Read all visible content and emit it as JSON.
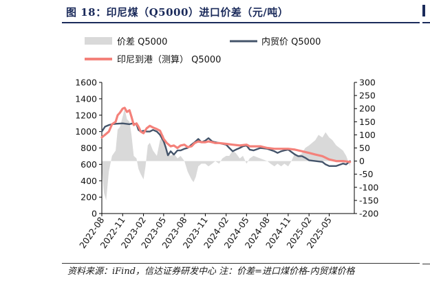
{
  "title": "图 18：印尼煤（Q5000）进口价差（元/吨）",
  "source": "资料来源：iFind，信达证券研发中心  注：价差=进口煤价格-内贸煤价格",
  "colors": {
    "title": "#1a2a5a",
    "spread": "#d9d9d9",
    "domestic": "#44546a",
    "imported": "#f4817a"
  },
  "chart_data": {
    "type": "line",
    "legend": [
      "价差 Q5000",
      "内贸价 Q5000",
      "印尼到港（测算） Q5000"
    ],
    "x_tick_labels": [
      "2022-08",
      "2022-11",
      "2023-02",
      "2023-05",
      "2023-08",
      "2023-11",
      "2024-02",
      "2024-05",
      "2024-08",
      "2024-11",
      "2025-02",
      "2025-05"
    ],
    "y_left": {
      "ticks": [
        "0",
        "200",
        "400",
        "600",
        "800",
        "1000",
        "1200",
        "1400",
        "1600"
      ],
      "range": [
        0,
        1600
      ]
    },
    "y_right": {
      "ticks": [
        "-200",
        "-150",
        "-100",
        "-50",
        "0",
        "50",
        "100",
        "150",
        "200",
        "250",
        "300"
      ],
      "range": [
        -200,
        300
      ]
    },
    "x_range": [
      "2022-08-01",
      "2025-08-20"
    ],
    "series": [
      {
        "name": "内贸价 Q5000",
        "axis": "left",
        "kind": "line",
        "points": [
          [
            "2022-08-01",
            1000
          ],
          [
            "2022-08-15",
            1060
          ],
          [
            "2022-09-01",
            1080
          ],
          [
            "2022-09-15",
            1090
          ],
          [
            "2022-10-01",
            1095
          ],
          [
            "2022-11-01",
            1100
          ],
          [
            "2022-12-01",
            1090
          ],
          [
            "2022-12-15",
            1100
          ],
          [
            "2023-01-01",
            1090
          ],
          [
            "2023-01-10",
            1020
          ],
          [
            "2023-01-20",
            1000
          ],
          [
            "2023-02-01",
            1010
          ],
          [
            "2023-02-15",
            1000
          ],
          [
            "2023-03-01",
            1000
          ],
          [
            "2023-03-15",
            1020
          ],
          [
            "2023-04-01",
            1000
          ],
          [
            "2023-04-15",
            960
          ],
          [
            "2023-05-01",
            880
          ],
          [
            "2023-05-10",
            810
          ],
          [
            "2023-05-20",
            710
          ],
          [
            "2023-06-01",
            760
          ],
          [
            "2023-06-15",
            720
          ],
          [
            "2023-07-01",
            770
          ],
          [
            "2023-07-15",
            770
          ],
          [
            "2023-08-01",
            790
          ],
          [
            "2023-08-15",
            800
          ],
          [
            "2023-09-01",
            840
          ],
          [
            "2023-09-15",
            870
          ],
          [
            "2023-10-01",
            910
          ],
          [
            "2023-10-15",
            870
          ],
          [
            "2023-11-01",
            890
          ],
          [
            "2023-11-15",
            920
          ],
          [
            "2023-12-01",
            880
          ],
          [
            "2023-12-15",
            870
          ],
          [
            "2024-01-01",
            860
          ],
          [
            "2024-01-15",
            850
          ],
          [
            "2024-02-01",
            840
          ],
          [
            "2024-02-15",
            800
          ],
          [
            "2024-03-01",
            760
          ],
          [
            "2024-03-15",
            780
          ],
          [
            "2024-04-01",
            800
          ],
          [
            "2024-04-15",
            820
          ],
          [
            "2024-05-01",
            830
          ],
          [
            "2024-05-15",
            780
          ],
          [
            "2024-06-01",
            770
          ],
          [
            "2024-07-01",
            800
          ],
          [
            "2024-08-01",
            790
          ],
          [
            "2024-09-01",
            760
          ],
          [
            "2024-09-15",
            740
          ],
          [
            "2024-10-01",
            760
          ],
          [
            "2024-10-15",
            770
          ],
          [
            "2024-11-01",
            780
          ],
          [
            "2024-12-01",
            720
          ],
          [
            "2024-12-15",
            700
          ],
          [
            "2025-01-01",
            700
          ],
          [
            "2025-01-15",
            680
          ],
          [
            "2025-02-01",
            650
          ],
          [
            "2025-03-01",
            640
          ],
          [
            "2025-04-01",
            630
          ],
          [
            "2025-04-15",
            600
          ],
          [
            "2025-05-01",
            580
          ],
          [
            "2025-05-15",
            580
          ],
          [
            "2025-06-01",
            580
          ],
          [
            "2025-07-01",
            610
          ],
          [
            "2025-07-15",
            600
          ],
          [
            "2025-08-01",
            640
          ]
        ]
      },
      {
        "name": "印尼到港（测算） Q5000",
        "axis": "left",
        "kind": "line",
        "points": [
          [
            "2022-08-01",
            930
          ],
          [
            "2022-08-15",
            960
          ],
          [
            "2022-09-01",
            1000
          ],
          [
            "2022-09-15",
            1090
          ],
          [
            "2022-10-01",
            1120
          ],
          [
            "2022-10-10",
            1200
          ],
          [
            "2022-10-20",
            1230
          ],
          [
            "2022-11-01",
            1280
          ],
          [
            "2022-11-10",
            1290
          ],
          [
            "2022-11-20",
            1240
          ],
          [
            "2022-12-01",
            1260
          ],
          [
            "2022-12-10",
            1180
          ],
          [
            "2022-12-20",
            1080
          ],
          [
            "2023-01-01",
            1100
          ],
          [
            "2023-01-10",
            1060
          ],
          [
            "2023-01-20",
            1000
          ],
          [
            "2023-02-01",
            980
          ],
          [
            "2023-02-15",
            1040
          ],
          [
            "2023-03-01",
            1070
          ],
          [
            "2023-03-15",
            1050
          ],
          [
            "2023-04-01",
            1030
          ],
          [
            "2023-04-15",
            1010
          ],
          [
            "2023-05-01",
            910
          ],
          [
            "2023-05-15",
            860
          ],
          [
            "2023-06-01",
            820
          ],
          [
            "2023-06-15",
            830
          ],
          [
            "2023-07-01",
            800
          ],
          [
            "2023-07-15",
            830
          ],
          [
            "2023-08-01",
            840
          ],
          [
            "2023-08-15",
            810
          ],
          [
            "2023-09-01",
            820
          ],
          [
            "2023-09-15",
            860
          ],
          [
            "2023-10-01",
            880
          ],
          [
            "2023-10-15",
            870
          ],
          [
            "2023-11-01",
            870
          ],
          [
            "2023-11-15",
            880
          ],
          [
            "2023-12-01",
            870
          ],
          [
            "2023-12-15",
            860
          ],
          [
            "2024-01-01",
            860
          ],
          [
            "2024-02-01",
            850
          ],
          [
            "2024-03-01",
            840
          ],
          [
            "2024-04-01",
            830
          ],
          [
            "2024-05-01",
            840
          ],
          [
            "2024-05-15",
            820
          ],
          [
            "2024-06-01",
            820
          ],
          [
            "2024-07-01",
            820
          ],
          [
            "2024-08-01",
            800
          ],
          [
            "2024-09-01",
            790
          ],
          [
            "2024-10-01",
            790
          ],
          [
            "2024-11-01",
            790
          ],
          [
            "2024-12-01",
            780
          ],
          [
            "2025-01-01",
            760
          ],
          [
            "2025-02-01",
            740
          ],
          [
            "2025-03-01",
            720
          ],
          [
            "2025-04-01",
            700
          ],
          [
            "2025-05-01",
            660
          ],
          [
            "2025-06-01",
            640
          ],
          [
            "2025-07-01",
            640
          ],
          [
            "2025-08-01",
            630
          ]
        ]
      },
      {
        "name": "价差 Q5000",
        "axis": "right",
        "kind": "area",
        "points": [
          [
            "2022-08-01",
            -30
          ],
          [
            "2022-08-10",
            -120
          ],
          [
            "2022-08-20",
            -150
          ],
          [
            "2022-09-01",
            -40
          ],
          [
            "2022-09-15",
            20
          ],
          [
            "2022-10-01",
            40
          ],
          [
            "2022-10-10",
            120
          ],
          [
            "2022-10-20",
            130
          ],
          [
            "2022-11-01",
            170
          ],
          [
            "2022-11-10",
            200
          ],
          [
            "2022-11-20",
            160
          ],
          [
            "2022-12-01",
            150
          ],
          [
            "2022-12-10",
            100
          ],
          [
            "2022-12-20",
            20
          ],
          [
            "2023-01-01",
            10
          ],
          [
            "2023-01-10",
            -30
          ],
          [
            "2023-01-20",
            -50
          ],
          [
            "2023-02-01",
            -70
          ],
          [
            "2023-02-10",
            -20
          ],
          [
            "2023-02-20",
            60
          ],
          [
            "2023-03-01",
            70
          ],
          [
            "2023-03-15",
            40
          ],
          [
            "2023-04-01",
            20
          ],
          [
            "2023-04-15",
            80
          ],
          [
            "2023-05-01",
            100
          ],
          [
            "2023-05-10",
            60
          ],
          [
            "2023-05-20",
            30
          ],
          [
            "2023-06-01",
            20
          ],
          [
            "2023-06-15",
            30
          ],
          [
            "2023-07-01",
            10
          ],
          [
            "2023-07-15",
            20
          ],
          [
            "2023-08-01",
            0
          ],
          [
            "2023-08-15",
            -40
          ],
          [
            "2023-09-01",
            -70
          ],
          [
            "2023-09-10",
            -80
          ],
          [
            "2023-09-20",
            -60
          ],
          [
            "2023-10-01",
            -20
          ],
          [
            "2023-10-15",
            -10
          ],
          [
            "2023-11-01",
            -10
          ],
          [
            "2023-11-15",
            -20
          ],
          [
            "2023-12-01",
            -10
          ],
          [
            "2023-12-15",
            0
          ],
          [
            "2024-01-01",
            -10
          ],
          [
            "2024-01-15",
            10
          ],
          [
            "2024-02-01",
            20
          ],
          [
            "2024-02-15",
            20
          ],
          [
            "2024-03-01",
            40
          ],
          [
            "2024-03-15",
            30
          ],
          [
            "2024-04-01",
            10
          ],
          [
            "2024-04-15",
            20
          ],
          [
            "2024-05-01",
            -10
          ],
          [
            "2024-05-15",
            10
          ],
          [
            "2024-06-01",
            20
          ],
          [
            "2024-07-01",
            10
          ],
          [
            "2024-08-01",
            0
          ],
          [
            "2024-08-15",
            -10
          ],
          [
            "2024-09-01",
            -20
          ],
          [
            "2024-09-15",
            -10
          ],
          [
            "2024-10-01",
            -20
          ],
          [
            "2024-10-15",
            -10
          ],
          [
            "2024-11-01",
            -20
          ],
          [
            "2024-11-15",
            0
          ],
          [
            "2024-12-01",
            30
          ],
          [
            "2024-12-15",
            20
          ],
          [
            "2025-01-01",
            30
          ],
          [
            "2025-01-15",
            50
          ],
          [
            "2025-02-01",
            60
          ],
          [
            "2025-02-15",
            70
          ],
          [
            "2025-03-01",
            80
          ],
          [
            "2025-03-15",
            100
          ],
          [
            "2025-04-01",
            90
          ],
          [
            "2025-04-15",
            110
          ],
          [
            "2025-05-01",
            90
          ],
          [
            "2025-05-15",
            80
          ],
          [
            "2025-06-01",
            60
          ],
          [
            "2025-07-01",
            40
          ],
          [
            "2025-07-15",
            20
          ],
          [
            "2025-08-01",
            -20
          ]
        ]
      }
    ]
  }
}
